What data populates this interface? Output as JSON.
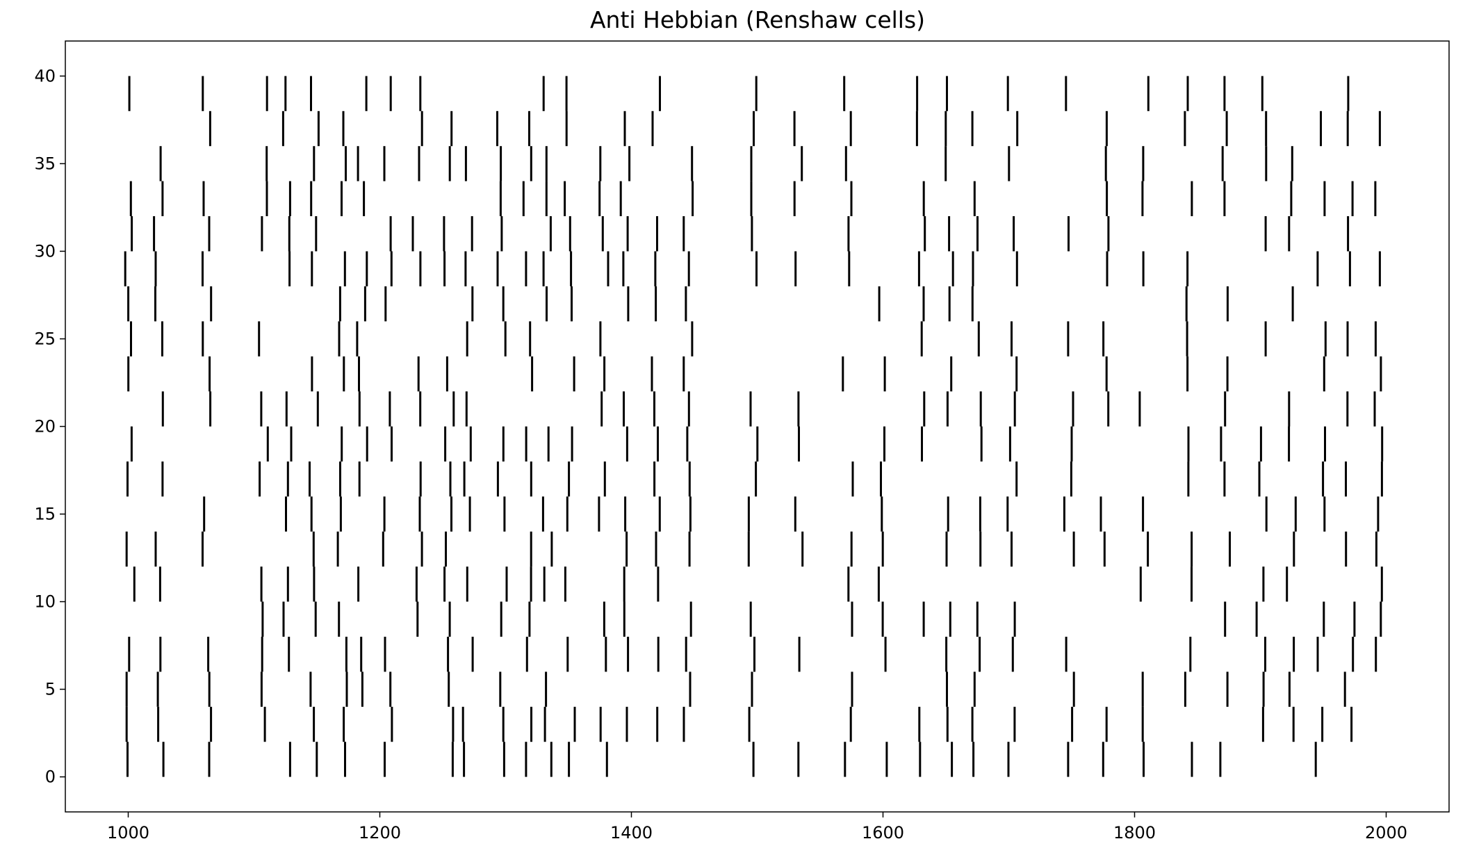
{
  "chart_data": {
    "type": "raster",
    "title": "Anti Hebbian (Renshaw cells)",
    "xlabel": "",
    "ylabel": "",
    "xlim": [
      950,
      2050
    ],
    "ylim": [
      -2,
      42
    ],
    "xticks": [
      1000,
      1200,
      1400,
      1600,
      1800,
      2000
    ],
    "yticks": [
      0,
      5,
      10,
      15,
      20,
      25,
      30,
      35,
      40
    ],
    "grid": false,
    "legend": "none",
    "mark_color": "#000000",
    "row_height": 2,
    "row_centers": [
      1,
      3,
      5,
      7,
      9,
      11,
      13,
      15,
      17,
      19,
      21,
      23,
      25,
      27,
      29,
      31,
      33,
      35,
      37,
      39
    ],
    "spike_columns": [
      1001,
      1024,
      1063,
      1107,
      1127,
      1148,
      1170,
      1186,
      1206,
      1230,
      1255,
      1270,
      1297,
      1318,
      1333,
      1351,
      1378,
      1395,
      1420,
      1445,
      1497,
      1533,
      1572,
      1600,
      1631,
      1652,
      1675,
      1703,
      1748,
      1777,
      1808,
      1842,
      1872,
      1901,
      1925,
      1948,
      1971,
      1994
    ],
    "note": "Spike times per row of 20 neurons (rows centered at y=1..39 step 2)."
  }
}
